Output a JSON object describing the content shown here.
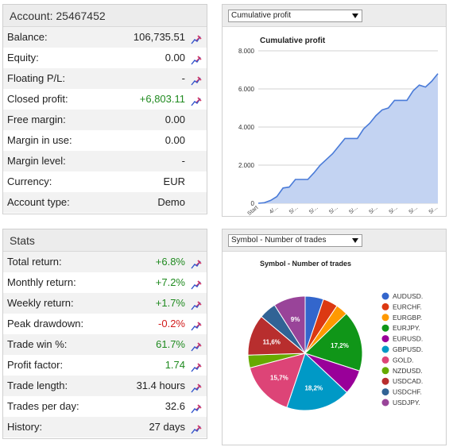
{
  "account": {
    "title": "Account: 25467452",
    "rows": [
      {
        "label": "Balance:",
        "value": "106,735.51",
        "tone": "",
        "editable": true
      },
      {
        "label": "Equity:",
        "value": "0.00",
        "tone": "",
        "editable": true
      },
      {
        "label": "Floating P/L:",
        "value": "-",
        "tone": "",
        "editable": true
      },
      {
        "label": "Closed profit:",
        "value": "+6,803.11",
        "tone": "pos",
        "editable": true
      },
      {
        "label": "Free margin:",
        "value": "0.00",
        "tone": "",
        "editable": false
      },
      {
        "label": "Margin in use:",
        "value": "0.00",
        "tone": "",
        "editable": false
      },
      {
        "label": "Margin level:",
        "value": "-",
        "tone": "",
        "editable": false
      },
      {
        "label": "Currency:",
        "value": "EUR",
        "tone": "",
        "editable": false
      },
      {
        "label": "Account type:",
        "value": "Demo",
        "tone": "",
        "editable": false
      }
    ]
  },
  "stats": {
    "title": "Stats",
    "rows": [
      {
        "label": "Total return:",
        "value": "+6.8%",
        "tone": "pos",
        "editable": true
      },
      {
        "label": "Monthly return:",
        "value": "+7.2%",
        "tone": "pos",
        "editable": true
      },
      {
        "label": "Weekly return:",
        "value": "+1.7%",
        "tone": "pos",
        "editable": true
      },
      {
        "label": "Peak drawdown:",
        "value": "-0.2%",
        "tone": "neg",
        "editable": true
      },
      {
        "label": "Trade win %:",
        "value": "61.7%",
        "tone": "pos",
        "editable": true
      },
      {
        "label": "Profit factor:",
        "value": "1.74",
        "tone": "pos",
        "editable": true
      },
      {
        "label": "Trade length:",
        "value": "31.4 hours",
        "tone": "",
        "editable": true
      },
      {
        "label": "Trades per day:",
        "value": "32.6",
        "tone": "",
        "editable": true
      },
      {
        "label": "History:",
        "value": "27 days",
        "tone": "",
        "editable": true
      }
    ]
  },
  "profit_chart": {
    "select_value": "Cumulative profit",
    "area_color": "#c3d3f2",
    "line_color": "#4a7bd8"
  },
  "symbol_chart": {
    "select_value": "Symbol - Number of trades"
  },
  "chart_data": [
    {
      "type": "area",
      "title": "Cumulative profit",
      "xlabel": "",
      "ylabel": "",
      "ylim": [
        0,
        8000
      ],
      "yticks": [
        0,
        2000,
        4000,
        6000,
        8000
      ],
      "ytick_labels": [
        "0",
        "2.000",
        "4.000",
        "6.000",
        "8.000"
      ],
      "x_tick_labels": [
        "Start",
        "4/...",
        "5/...",
        "5/...",
        "5/...",
        "5/...",
        "5/...",
        "5/...",
        "5/...",
        "5/..."
      ],
      "grid": true,
      "values": [
        0,
        30,
        150,
        350,
        800,
        850,
        1250,
        1250,
        1250,
        1600,
        2000,
        2300,
        2600,
        3000,
        3400,
        3400,
        3400,
        3900,
        4200,
        4600,
        4900,
        5000,
        5400,
        5400,
        5400,
        5900,
        6200,
        6100,
        6400,
        6800
      ]
    },
    {
      "type": "pie",
      "title": "Symbol - Number of trades",
      "legend_position": "right",
      "slices": [
        {
          "name": "AUDUSD.",
          "value": 5.2,
          "label": "",
          "color": "#3366cc"
        },
        {
          "name": "EURCHF.",
          "value": 4.2,
          "label": "",
          "color": "#dc3912"
        },
        {
          "name": "EURGBP.",
          "value": 3.4,
          "label": "",
          "color": "#ff9900"
        },
        {
          "name": "EURJPY.",
          "value": 17.2,
          "label": "17,2%",
          "color": "#109618"
        },
        {
          "name": "EURUSD.",
          "value": 7.0,
          "label": "",
          "color": "#990099"
        },
        {
          "name": "GBPUSD.",
          "value": 18.2,
          "label": "18,2%",
          "color": "#0099c6"
        },
        {
          "name": "GOLD.",
          "value": 15.7,
          "label": "15,7%",
          "color": "#dd4477"
        },
        {
          "name": "NZDUSD.",
          "value": 3.6,
          "label": "",
          "color": "#66aa00"
        },
        {
          "name": "USDCAD.",
          "value": 11.6,
          "label": "11,6%",
          "color": "#b82e2e"
        },
        {
          "name": "USDCHF.",
          "value": 4.9,
          "label": "",
          "color": "#316395"
        },
        {
          "name": "USDJPY.",
          "value": 9.0,
          "label": "9%",
          "color": "#994499"
        }
      ]
    }
  ]
}
